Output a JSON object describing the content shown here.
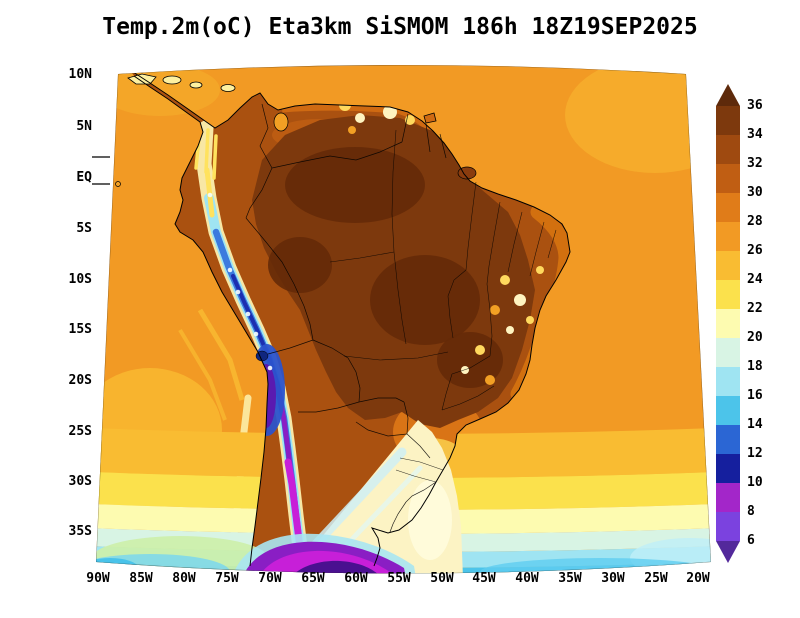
{
  "title": "Temp.2m(oC) Eta3km SiSMOM 186h 18Z19SEP2025",
  "axes": {
    "lat_labels": [
      "10N",
      "5N",
      "EQ",
      "5S",
      "10S",
      "15S",
      "20S",
      "25S",
      "30S",
      "35S"
    ],
    "lon_labels": [
      "90W",
      "85W",
      "80W",
      "75W",
      "70W",
      "65W",
      "60W",
      "55W",
      "50W",
      "45W",
      "40W",
      "35W",
      "30W",
      "25W",
      "20W"
    ]
  },
  "colorbar": {
    "labels": [
      "36",
      "34",
      "32",
      "30",
      "28",
      "26",
      "24",
      "22",
      "20",
      "18",
      "16",
      "14",
      "12",
      "10",
      "8",
      "6"
    ],
    "colors": [
      "#5e2a0b",
      "#7d390d",
      "#9f4a10",
      "#c05e13",
      "#e07c19",
      "#f29a24",
      "#f9bc32",
      "#fbe14c",
      "#fdfbb0",
      "#d8f4e4",
      "#9fe4f2",
      "#4cc4ea",
      "#2b66d4",
      "#151f9e",
      "#a326c9",
      "#7b42df",
      "#53299b"
    ]
  },
  "chart_data": {
    "type": "heatmap",
    "title": "Temp.2m(oC) Eta3km SiSMOM 186h 18Z19SEP2025",
    "variable": "Temp.2m",
    "units": "oC",
    "model": "Eta3km SiSMOM",
    "forecast_hour": "186h",
    "init_time": "18Z19SEP2025",
    "x_ticks": [
      "90W",
      "85W",
      "80W",
      "75W",
      "70W",
      "65W",
      "60W",
      "55W",
      "50W",
      "45W",
      "40W",
      "35W",
      "30W",
      "25W",
      "20W"
    ],
    "y_ticks": [
      "10N",
      "5N",
      "EQ",
      "5S",
      "10S",
      "15S",
      "20S",
      "25S",
      "30S",
      "35S"
    ],
    "colorbar_levels": [
      6,
      8,
      10,
      12,
      14,
      16,
      18,
      20,
      22,
      24,
      26,
      28,
      30,
      32,
      34,
      36
    ],
    "colorbar_colors": [
      "#5e2a0b",
      "#7d390d",
      "#9f4a10",
      "#c05e13",
      "#e07c19",
      "#f29a24",
      "#f9bc32",
      "#fbe14c",
      "#fdfbb0",
      "#d8f4e4",
      "#9fe4f2",
      "#4cc4ea",
      "#2b66d4",
      "#151f9e",
      "#a326c9",
      "#7b42df",
      "#53299b"
    ],
    "legend_position": "right",
    "grid": false,
    "region_values": [
      {
        "region": "Amazon basin and central Brazil interior",
        "approx_temp_oC": "32 to 36+"
      },
      {
        "region": "Guiana highlands bright speckles",
        "approx_temp_oC": "22 to 26"
      },
      {
        "region": "Northeast Brazil coastal strip",
        "approx_temp_oC": "28 to 32"
      },
      {
        "region": "Caribbean and tropical Atlantic ocean",
        "approx_temp_oC": "26 to 28"
      },
      {
        "region": "Tropical Pacific off Peru and Chile",
        "approx_temp_oC": "24 to 28"
      },
      {
        "region": "Andes cordillera Ecuador-Peru",
        "approx_temp_oC": "10 to 20"
      },
      {
        "region": "Bolivian Altiplano and north Chile Andes",
        "approx_temp_oC": "6 to 12"
      },
      {
        "region": "Southern Andes near bottom of domain",
        "approx_temp_oC": "below 6 to 10"
      },
      {
        "region": "Cold-air wedge over Argentina/Uruguay",
        "approx_temp_oC": "18 to 24"
      },
      {
        "region": "South Atlantic near 30S",
        "approx_temp_oC": "20 to 24"
      },
      {
        "region": "South Atlantic near 35S",
        "approx_temp_oC": "14 to 20"
      }
    ]
  }
}
